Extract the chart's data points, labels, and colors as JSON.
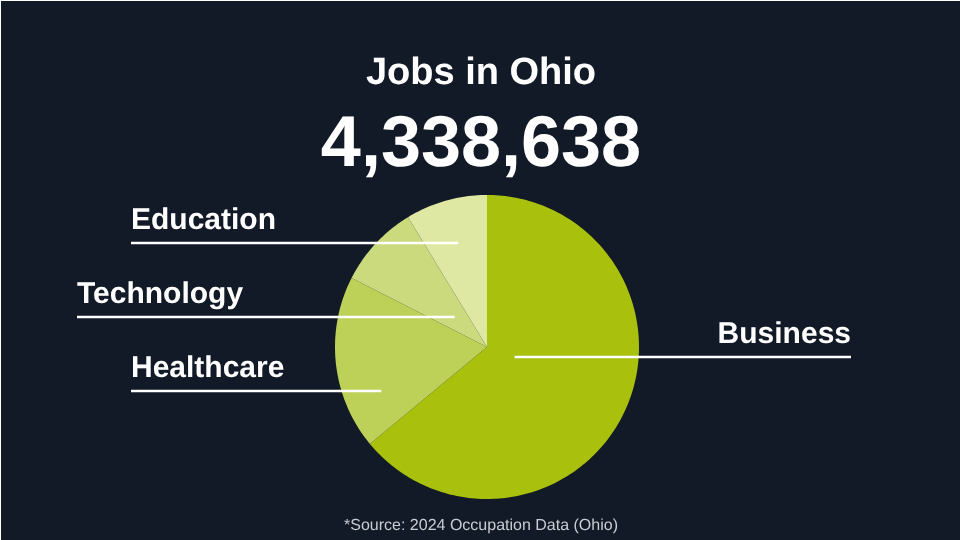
{
  "chart_data": {
    "type": "pie",
    "title": "Jobs in Ohio",
    "subtitle": "4,338,638",
    "categories": [
      "Business",
      "Healthcare",
      "Technology",
      "Education"
    ],
    "values": [
      64,
      18.5,
      8.8,
      8.7
    ],
    "colors": [
      "#a9c00c",
      "#bdd058",
      "#cbda7c",
      "#dfe8a3"
    ],
    "annotations": [
      "*Source: 2024 Occupation Data (Ohio)"
    ]
  }
}
